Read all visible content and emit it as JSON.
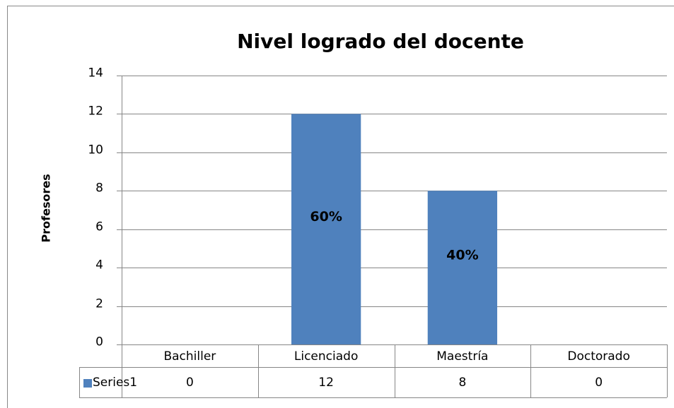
{
  "chart_data": {
    "type": "bar",
    "title": "Nivel logrado del docente",
    "ylabel": "Profesores",
    "categories": [
      "Bachiller",
      "Licenciado",
      "Maestría",
      "Doctorado"
    ],
    "series": [
      {
        "name": "Series1",
        "color": "#4f81bd",
        "values": [
          0,
          12,
          8,
          0
        ]
      }
    ],
    "data_labels": [
      null,
      "60%",
      "40%",
      null
    ],
    "ylim": [
      0,
      14
    ],
    "yticks": [
      0,
      2,
      4,
      6,
      8,
      10,
      12,
      14
    ],
    "grid": true,
    "data_table": true
  }
}
